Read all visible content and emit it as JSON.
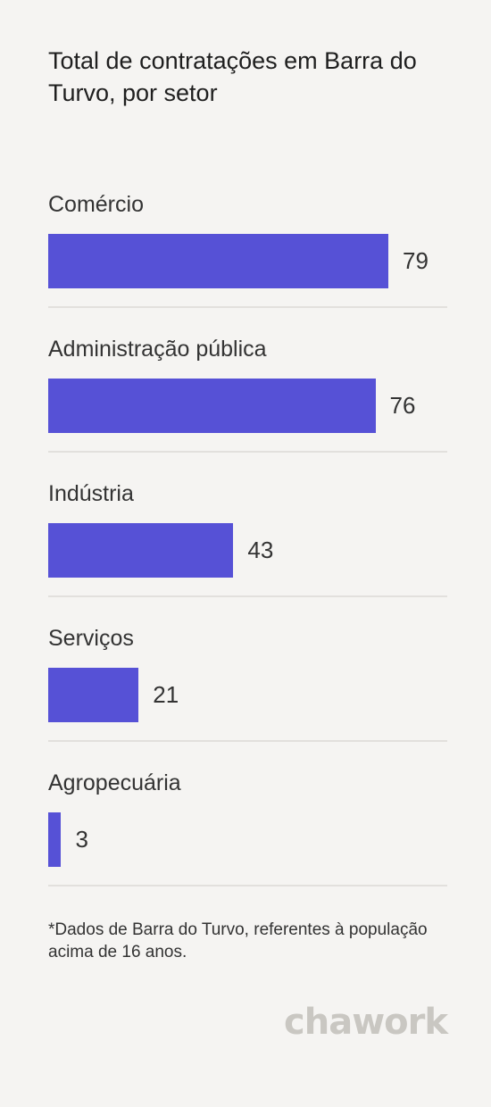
{
  "chart_data": {
    "type": "bar",
    "orientation": "horizontal",
    "title": "Total de contratações em Barra do Turvo, por setor",
    "categories": [
      "Comércio",
      "Administração pública",
      "Indústria",
      "Serviços",
      "Agropecuária"
    ],
    "values": [
      79,
      76,
      43,
      21,
      3
    ],
    "bar_color": "#5651d6",
    "xlim": [
      0,
      79
    ]
  },
  "footnote": "*Dados de Barra do Turvo, referentes à população acima de 16 anos.",
  "logo": "chawork"
}
